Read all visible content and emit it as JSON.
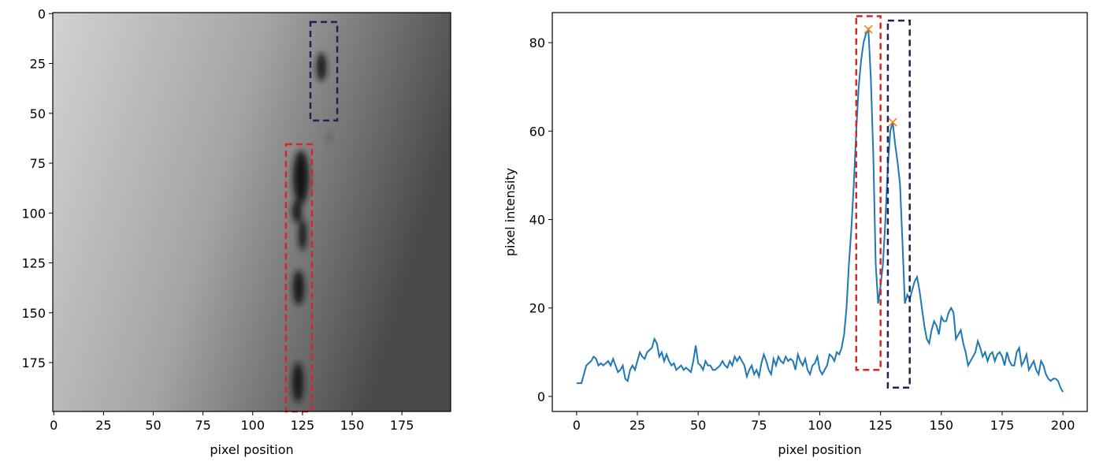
{
  "chart_data": [
    {
      "type": "image",
      "xlabel": "pixel position",
      "xlim": [
        -0.5,
        199.5
      ],
      "ylim": [
        199.5,
        -0.5
      ],
      "xticks": [
        0,
        25,
        50,
        75,
        100,
        125,
        150,
        175
      ],
      "yticks": [
        0,
        25,
        50,
        75,
        100,
        125,
        150,
        175
      ],
      "boxes": [
        {
          "x": [
            129,
            142.5
          ],
          "y": [
            4.2,
            53.6
          ],
          "color": "#1a2456"
        },
        {
          "x": [
            116.7,
            129.8
          ],
          "y": [
            65.5,
            199.5
          ],
          "color": "#d62728"
        }
      ]
    },
    {
      "type": "line",
      "xlabel": "pixel position",
      "ylabel": "pixel intensity",
      "xlim": [
        -10,
        210
      ],
      "ylim": [
        -3.4,
        86.8
      ],
      "xticks": [
        0,
        25,
        50,
        75,
        100,
        125,
        150,
        175,
        200
      ],
      "yticks": [
        0,
        20,
        40,
        60,
        80
      ],
      "color": "#1f77b4",
      "x": [
        0,
        1,
        2,
        3,
        4,
        5,
        6,
        7,
        8,
        9,
        10,
        11,
        12,
        13,
        14,
        15,
        16,
        17,
        18,
        19,
        20,
        21,
        22,
        23,
        24,
        25,
        26,
        27,
        28,
        29,
        30,
        31,
        32,
        33,
        34,
        35,
        36,
        37,
        38,
        39,
        40,
        41,
        42,
        43,
        44,
        45,
        46,
        47,
        48,
        49,
        50,
        51,
        52,
        53,
        54,
        55,
        56,
        57,
        58,
        59,
        60,
        61,
        62,
        63,
        64,
        65,
        66,
        67,
        68,
        69,
        70,
        71,
        72,
        73,
        74,
        75,
        76,
        77,
        78,
        79,
        80,
        81,
        82,
        83,
        84,
        85,
        86,
        87,
        88,
        89,
        90,
        91,
        92,
        93,
        94,
        95,
        96,
        97,
        98,
        99,
        100,
        101,
        102,
        103,
        104,
        105,
        106,
        107,
        108,
        109,
        110,
        111,
        112,
        113,
        114,
        115,
        116,
        117,
        118,
        119,
        120,
        121,
        122,
        123,
        124,
        125,
        126,
        127,
        128,
        129,
        130,
        131,
        132,
        133,
        134,
        135,
        136,
        137,
        138,
        139,
        140,
        141,
        142,
        143,
        144,
        145,
        146,
        147,
        148,
        149,
        150,
        151,
        152,
        153,
        154,
        155,
        156,
        157,
        158,
        159,
        160,
        161,
        162,
        163,
        164,
        165,
        166,
        167,
        168,
        169,
        170,
        171,
        172,
        173,
        174,
        175,
        176,
        177,
        178,
        179,
        180,
        181,
        182,
        183,
        184,
        185,
        186,
        187,
        188,
        189,
        190,
        191,
        192,
        193,
        194,
        195,
        196,
        197,
        198,
        199,
        200
      ],
      "values": [
        3,
        3,
        3,
        5,
        7,
        7.5,
        8,
        9,
        8.5,
        7,
        7.5,
        7,
        7.5,
        8,
        7,
        8.5,
        7,
        5.5,
        6,
        7,
        4,
        3.5,
        6,
        7,
        6,
        8,
        10,
        9,
        8.5,
        10,
        10.5,
        11,
        13,
        12,
        9,
        10,
        8,
        9.5,
        8,
        7,
        7.5,
        6,
        6.5,
        7,
        6,
        6.5,
        6,
        5.5,
        8,
        11.5,
        7.5,
        7,
        6,
        8,
        7,
        7,
        6,
        6,
        6.5,
        7,
        8,
        7,
        6.5,
        8,
        7,
        9,
        8,
        9,
        8,
        7,
        4.5,
        6,
        7,
        5,
        6,
        4.5,
        7.5,
        9.5,
        8,
        6,
        5,
        8.5,
        7,
        9,
        8,
        7.5,
        9,
        8,
        8.5,
        8,
        6,
        9.5,
        8,
        7,
        8.5,
        6,
        5,
        7,
        7.5,
        9,
        6,
        5,
        6,
        7,
        9.5,
        9,
        8,
        10,
        9.5,
        11,
        14,
        20,
        30,
        38,
        48,
        60,
        70,
        76,
        80,
        82,
        83,
        72,
        55,
        30,
        21,
        25,
        30,
        40,
        52,
        60,
        62,
        57,
        53,
        48,
        35,
        21,
        23,
        22,
        24,
        26,
        27,
        24,
        20,
        16,
        13,
        12,
        15,
        17,
        16,
        14,
        18,
        17,
        17,
        19,
        20,
        19,
        13,
        14,
        15,
        12,
        10,
        7,
        8,
        9,
        10,
        12.5,
        11,
        9,
        10,
        8,
        9.5,
        10,
        8,
        9.5,
        10,
        9,
        7,
        10,
        8,
        7,
        7,
        10,
        11,
        7,
        8,
        9.5,
        6,
        7,
        8,
        6,
        5,
        8,
        7,
        5,
        4,
        3.5,
        4,
        4,
        3.5,
        2,
        1
      ],
      "peaks": {
        "x": [
          120,
          130
        ],
        "values": [
          83,
          62
        ],
        "color": "#ff7f0e"
      },
      "boxes": [
        {
          "x": [
            115,
            125
          ],
          "y": [
            6,
            86
          ],
          "color": "#d62728"
        },
        {
          "x": [
            128,
            137
          ],
          "y": [
            2,
            85
          ],
          "color": "#1a2456"
        }
      ]
    }
  ]
}
